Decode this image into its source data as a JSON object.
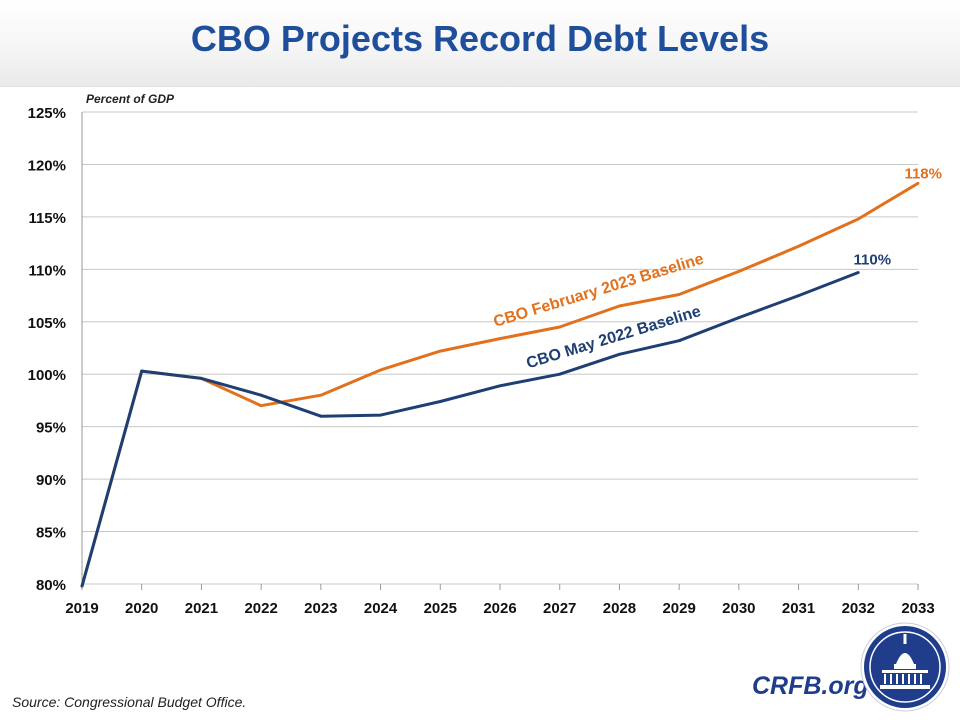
{
  "page": {
    "title": "CBO Projects Record Debt Levels",
    "source": "Source: Congressional Budget Office.",
    "brand": "CRFB.org"
  },
  "colors": {
    "title": "#1f4e9a",
    "feb2023": "#e2711d",
    "may2022": "#1d3f73",
    "grid": "#c8c8c8",
    "seal": "#1f3d8a"
  },
  "chart_data": {
    "type": "line",
    "title": "CBO Projects Record Debt Levels",
    "ylabel": "Percent of GDP",
    "xlabel": "",
    "x": [
      2019,
      2020,
      2021,
      2022,
      2023,
      2024,
      2025,
      2026,
      2027,
      2028,
      2029,
      2030,
      2031,
      2032,
      2033
    ],
    "xtick_labels": [
      "2019",
      "2020",
      "2021",
      "2022",
      "2023",
      "2024",
      "2025",
      "2026",
      "2027",
      "2028",
      "2029",
      "2030",
      "2031",
      "2032",
      "2033"
    ],
    "ylim": [
      80,
      125
    ],
    "yticks": [
      80,
      85,
      90,
      95,
      100,
      105,
      110,
      115,
      120,
      125
    ],
    "ytick_labels": [
      "80%",
      "85%",
      "90%",
      "95%",
      "100%",
      "105%",
      "110%",
      "115%",
      "120%",
      "125%"
    ],
    "grid": true,
    "series": [
      {
        "name": "CBO February 2023 Baseline",
        "color": "#e2711d",
        "x": [
          2019,
          2020,
          2021,
          2022,
          2023,
          2024,
          2025,
          2026,
          2027,
          2028,
          2029,
          2030,
          2031,
          2032,
          2033
        ],
        "values": [
          79.8,
          100.3,
          99.6,
          97.0,
          98.0,
          100.4,
          102.2,
          103.4,
          104.5,
          106.5,
          107.6,
          109.8,
          112.2,
          114.8,
          118.2
        ],
        "end_label": "118%"
      },
      {
        "name": "CBO May 2022 Baseline",
        "color": "#1d3f73",
        "x": [
          2019,
          2020,
          2021,
          2022,
          2023,
          2024,
          2025,
          2026,
          2027,
          2028,
          2029,
          2030,
          2031,
          2032
        ],
        "values": [
          79.8,
          100.3,
          99.6,
          98.0,
          96.0,
          96.1,
          97.4,
          98.9,
          100.0,
          101.9,
          103.2,
          105.4,
          107.5,
          109.7
        ],
        "end_label": "110%"
      }
    ]
  }
}
